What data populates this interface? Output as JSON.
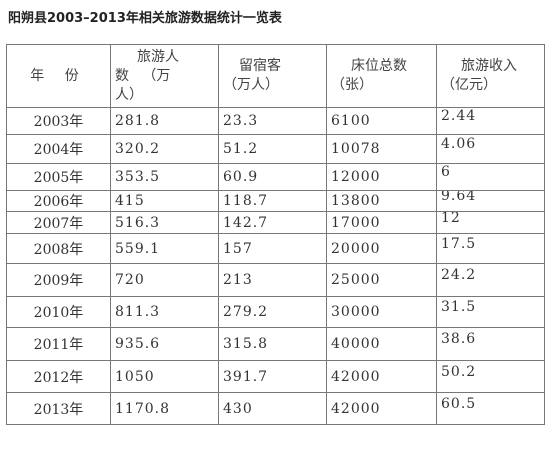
{
  "title": "阳朔县2003–2013年相关旅游数据统计一览表",
  "headers": {
    "year": "年 份",
    "tourists_line1": "旅游人",
    "tourists_line2": "数   （万",
    "tourists_line3": "人）",
    "overnight_line1": "留宿客",
    "overnight_line2": "（万人）",
    "beds_line1": "床位总数",
    "beds_line2": "（张）",
    "revenue_line1": "旅游收入",
    "revenue_line2": "（亿元）"
  },
  "rows": [
    {
      "year": "2003年",
      "tourists": "281.8",
      "overnight": "23.3",
      "beds": "6100",
      "revenue": "2.44"
    },
    {
      "year": "2004年",
      "tourists": "320.2",
      "overnight": "51.2",
      "beds": "10078",
      "revenue": "4.06"
    },
    {
      "year": "2005年",
      "tourists": "353.5",
      "overnight": "60.9",
      "beds": "12000",
      "revenue": "6"
    },
    {
      "year": "2006年",
      "tourists": "415",
      "overnight": "118.7",
      "beds": "13800",
      "revenue": "9.64"
    },
    {
      "year": "2007年",
      "tourists": "516.3",
      "overnight": "142.7",
      "beds": "17000",
      "revenue": "12"
    },
    {
      "year": "2008年",
      "tourists": "559.1",
      "overnight": "157",
      "beds": "20000",
      "revenue": "17.5"
    },
    {
      "year": "2009年",
      "tourists": "720",
      "overnight": "213",
      "beds": "25000",
      "revenue": "24.2"
    },
    {
      "year": "2010年",
      "tourists": "811.3",
      "overnight": "279.2",
      "beds": "30000",
      "revenue": "31.5"
    },
    {
      "year": "2011年",
      "tourists": "935.6",
      "overnight": "315.8",
      "beds": "40000",
      "revenue": "38.6"
    },
    {
      "year": "2012年",
      "tourists": "1050",
      "overnight": "391.7",
      "beds": "42000",
      "revenue": "50.2"
    },
    {
      "year": "2013年",
      "tourists": "1170.8",
      "overnight": "430",
      "beds": "42000",
      "revenue": "60.5"
    }
  ]
}
